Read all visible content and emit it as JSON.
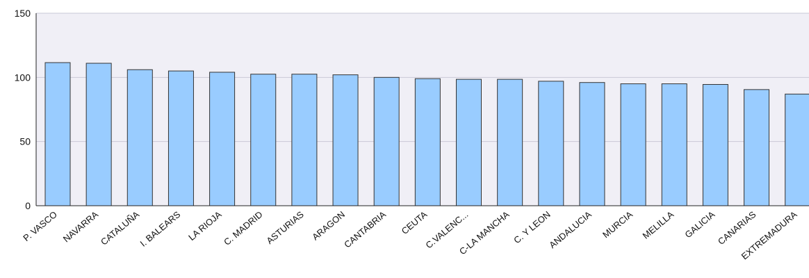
{
  "chart_data": {
    "type": "bar",
    "categories": [
      "P. VASCO",
      "NAVARRA",
      "CATALUÑA",
      "I. BALEARS",
      "LA RIOJA",
      "C. MADRID",
      "ASTURIAS",
      "ARAGON",
      "CANTABRIA",
      "CEUTA",
      "C.VALENC...",
      "C-LA MANCHA",
      "C. Y LEON",
      "ANDALUCIA",
      "MURCIA",
      "MELILLA",
      "GALICIA",
      "CANARIAS",
      "EXTREMADURA"
    ],
    "values": [
      111.5,
      111,
      106,
      105,
      104,
      102.5,
      102.5,
      102,
      100,
      99,
      98.5,
      98.5,
      97,
      96,
      95,
      95,
      94.5,
      90.5,
      87
    ],
    "ylim": [
      0,
      150
    ],
    "yticks": [
      0,
      50,
      100,
      150
    ],
    "grid": true,
    "colors": {
      "bar_fill": "#99ccff",
      "bar_stroke": "#333333",
      "plot_background": "#f0eff6",
      "grid": "#c9c8d6",
      "axis": "#222222"
    }
  }
}
